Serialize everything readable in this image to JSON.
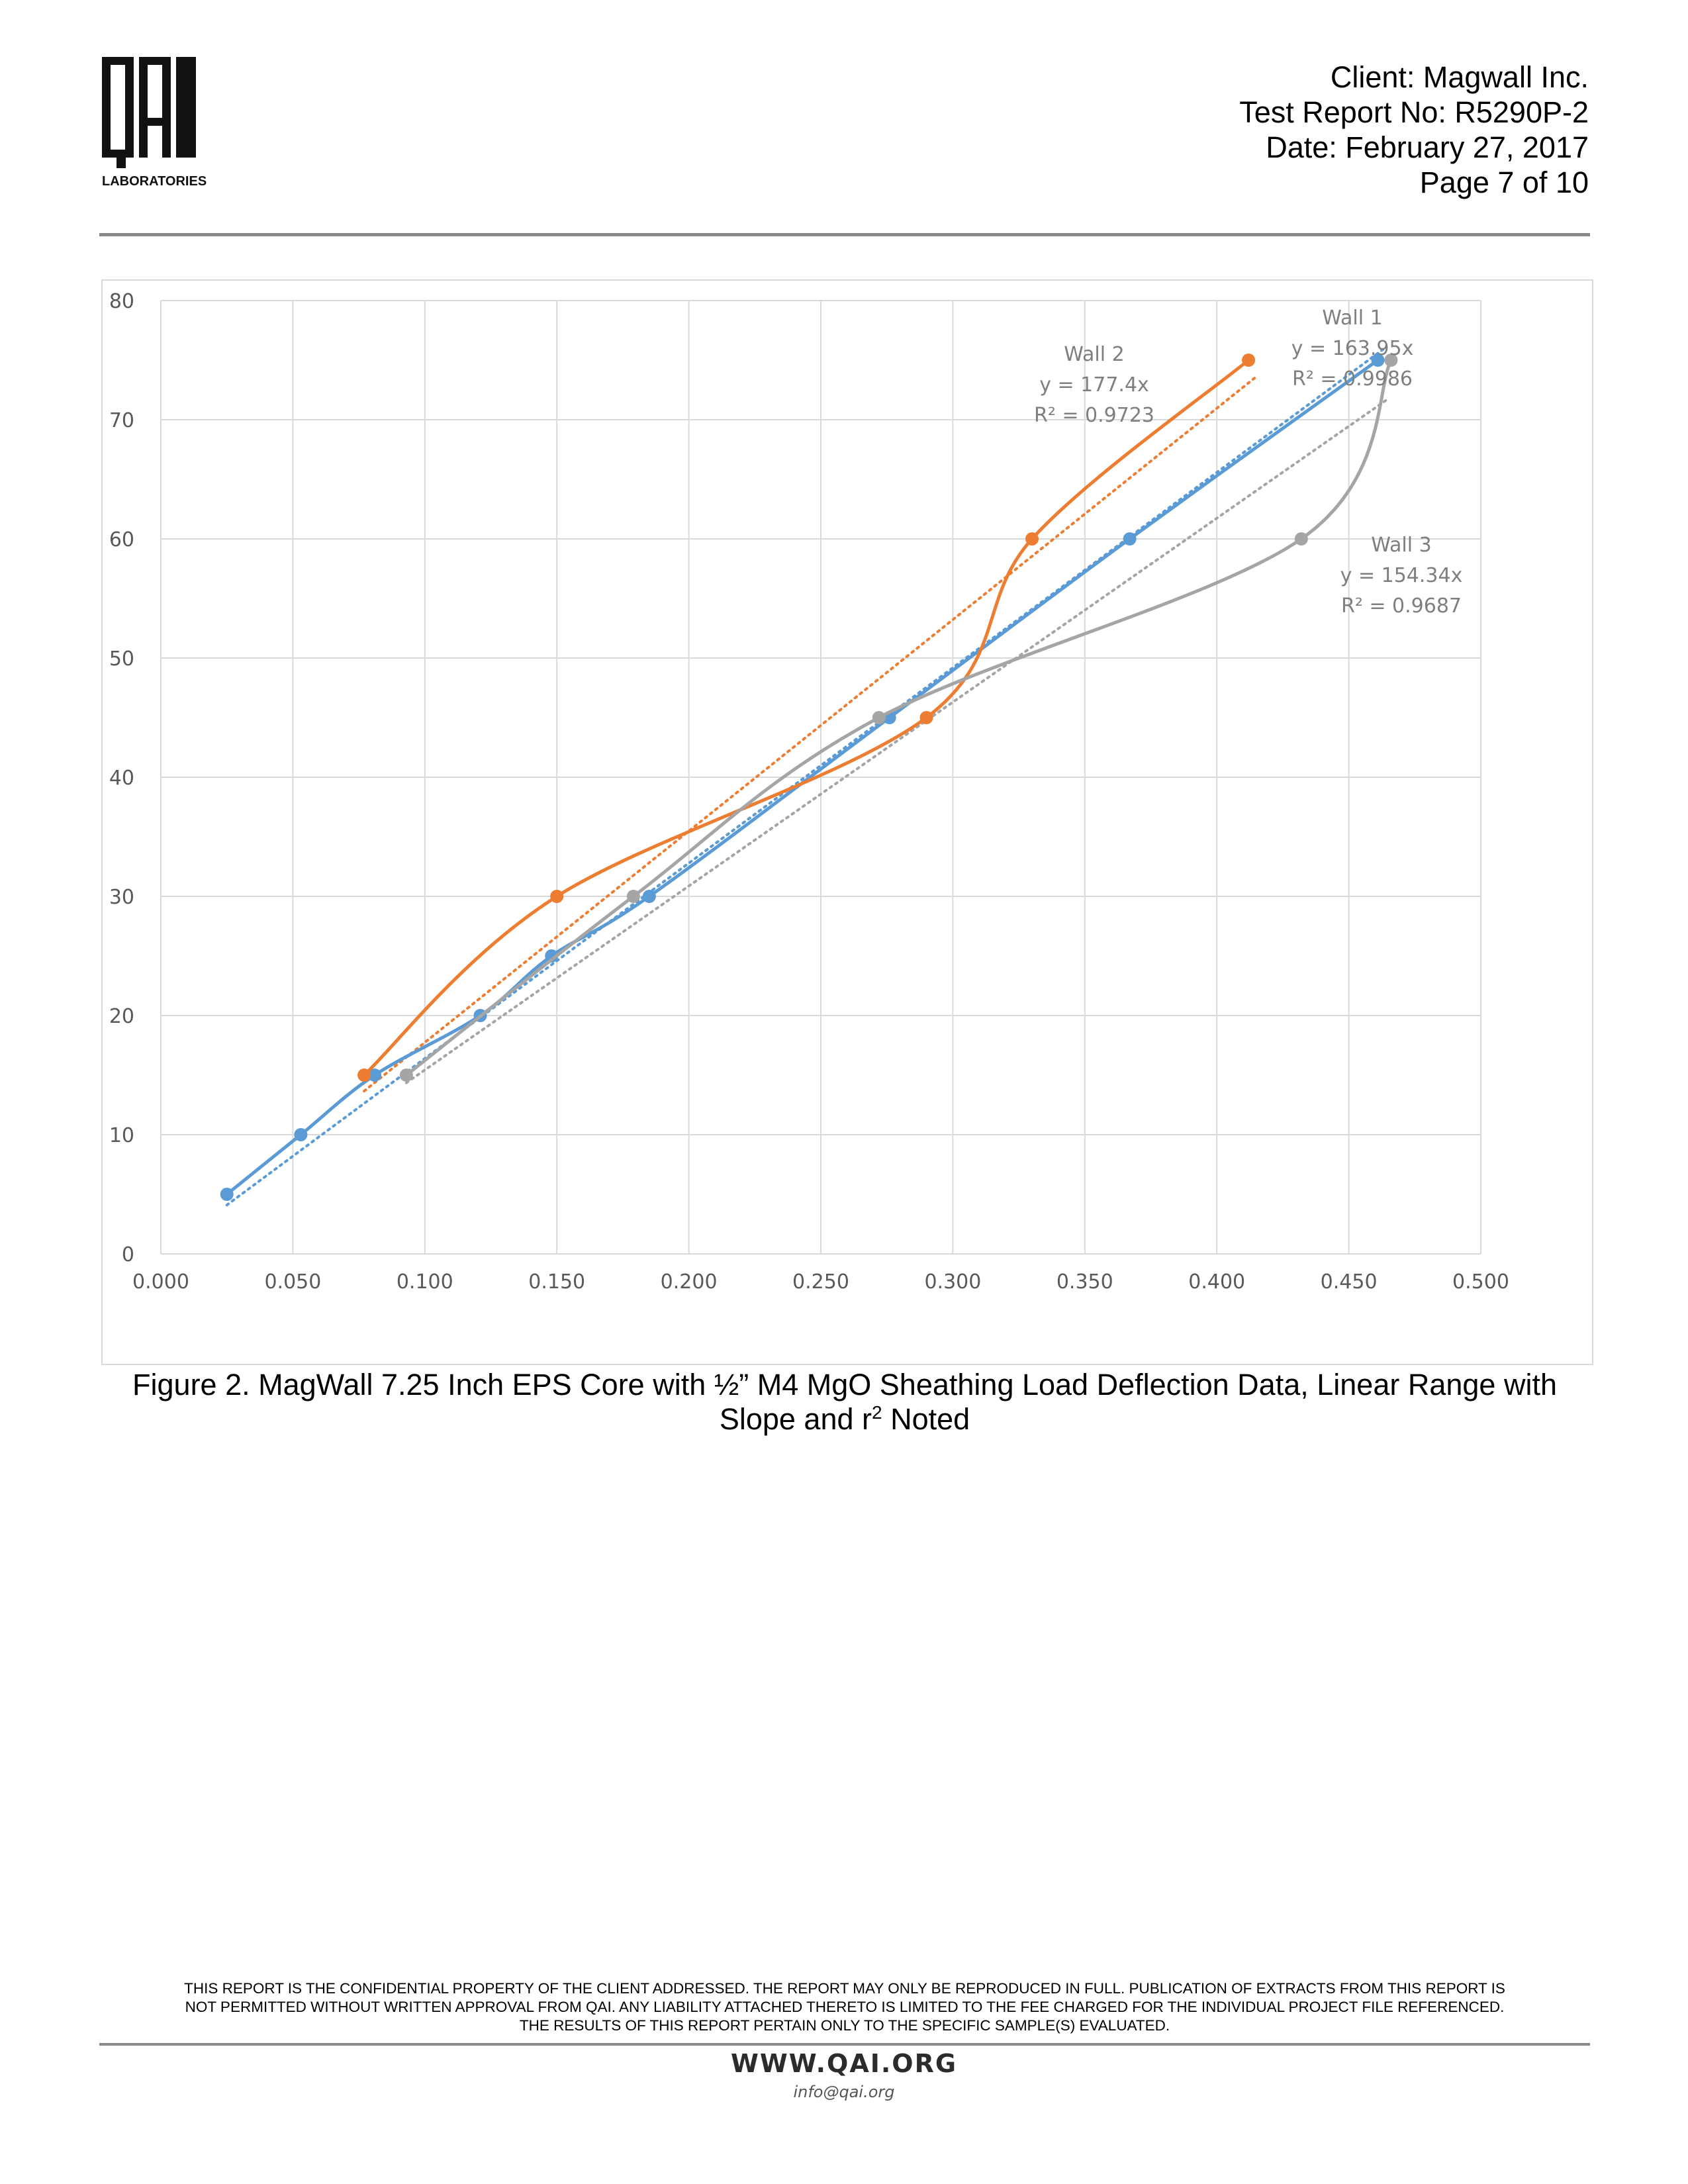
{
  "header": {
    "logo_text": "QAI",
    "logo_subtext": "LABORATORIES",
    "client": "Client: Magwall Inc.",
    "report_no": "Test Report No: R5290P-2",
    "date": "Date: February 27, 2017",
    "page": "Page 7 of 10"
  },
  "caption": {
    "line1": "Figure 2.  MagWall 7.25 Inch EPS Core with ½” M4 MgO Sheathing Load Deflection Data, Linear Range with",
    "line2_pre": "Slope and r",
    "line2_sup": "2",
    "line2_post": " Noted"
  },
  "footer": {
    "disclaimer_line1": "THIS REPORT IS THE CONFIDENTIAL PROPERTY OF THE CLIENT ADDRESSED. THE REPORT MAY ONLY BE REPRODUCED IN FULL. PUBLICATION OF EXTRACTS FROM THIS REPORT IS",
    "disclaimer_line2": "NOT PERMITTED WITHOUT WRITTEN APPROVAL FROM QAI. ANY LIABILITY ATTACHED THERETO IS LIMITED TO THE FEE CHARGED FOR THE INDIVIDUAL PROJECT FILE REFERENCED.",
    "disclaimer_line3": "THE RESULTS OF THIS REPORT PERTAIN ONLY TO THE SPECIFIC SAMPLE(S) EVALUATED.",
    "website": "WWW.QAI.ORG",
    "email": "info@qai.org"
  },
  "chart_data": {
    "type": "scatter",
    "title": "",
    "xlabel": "",
    "ylabel": "",
    "xlim": [
      0,
      0.5
    ],
    "ylim": [
      0,
      80
    ],
    "x_ticks": [
      "0.000",
      "0.050",
      "0.100",
      "0.150",
      "0.200",
      "0.250",
      "0.300",
      "0.350",
      "0.400",
      "0.450",
      "0.500"
    ],
    "y_ticks": [
      "0",
      "10",
      "20",
      "30",
      "40",
      "50",
      "60",
      "70",
      "80"
    ],
    "grid": true,
    "series": [
      {
        "name": "Wall 1",
        "color": "#5b9bd5",
        "x": [
          0.025,
          0.053,
          0.081,
          0.121,
          0.148,
          0.185,
          0.276,
          0.367,
          0.461
        ],
        "y": [
          5,
          10,
          15,
          20,
          25,
          30,
          45,
          60,
          75
        ],
        "trendline": {
          "slope": 163.95,
          "x_range": [
            0.025,
            0.463
          ]
        },
        "annotation": [
          "Wall 1",
          "y = 163.95x",
          "R² = 0.9986"
        ]
      },
      {
        "name": "Wall 2",
        "color": "#ed7d31",
        "x": [
          0.077,
          0.15,
          0.29,
          0.33,
          0.412
        ],
        "y": [
          15,
          30,
          45,
          60,
          75
        ],
        "trendline": {
          "slope": 177.4,
          "x_range": [
            0.077,
            0.415
          ]
        },
        "annotation": [
          "Wall 2",
          "y = 177.4x",
          "R² = 0.9723"
        ]
      },
      {
        "name": "Wall 3",
        "color": "#a5a5a5",
        "x": [
          0.093,
          0.179,
          0.272,
          0.432,
          0.466
        ],
        "y": [
          15,
          30,
          45,
          60,
          75
        ],
        "trendline": {
          "slope": 154.34,
          "x_range": [
            0.093,
            0.465
          ]
        },
        "annotation": [
          "Wall 3",
          "y = 154.34x",
          "R² = 0.9687"
        ]
      }
    ]
  }
}
